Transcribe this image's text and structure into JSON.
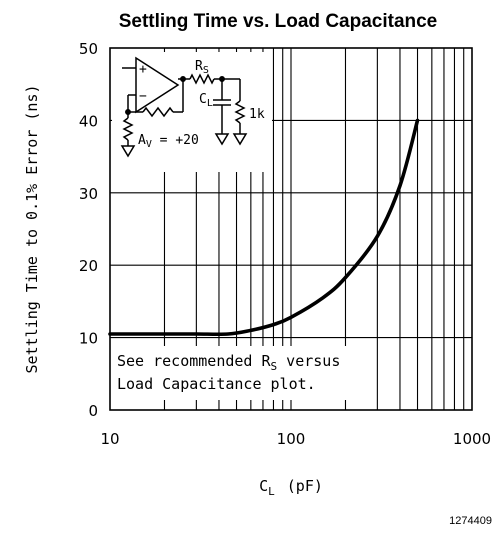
{
  "chart_data": {
    "type": "line",
    "title": "Settling Time vs. Load Capacitance",
    "xlabel": "C",
    "xlabel_sub": "L",
    "xlabel_unit": "(pF)",
    "ylabel": "Settling Time to 0.1% Error (ns)",
    "xscale": "log",
    "xlim": [
      10,
      1000
    ],
    "ylim": [
      0,
      50
    ],
    "xticks": [
      {
        "value": 10,
        "label": "10"
      },
      {
        "value": 100,
        "label": "100"
      },
      {
        "value": 1000,
        "label": "1000"
      }
    ],
    "yticks": [
      {
        "value": 0,
        "label": "0"
      },
      {
        "value": 10,
        "label": "10"
      },
      {
        "value": 20,
        "label": "20"
      },
      {
        "value": 30,
        "label": "30"
      },
      {
        "value": 40,
        "label": "40"
      },
      {
        "value": 50,
        "label": "50"
      }
    ],
    "grid": true,
    "series": [
      {
        "x": [
          10,
          20,
          30,
          45,
          60,
          80,
          100,
          150,
          200,
          300,
          400,
          500
        ],
        "y": [
          10.5,
          10.5,
          10.5,
          10.5,
          11.0,
          11.8,
          12.8,
          15.5,
          18.3,
          24.0,
          31.0,
          40.0
        ]
      }
    ],
    "annotation": {
      "line1_before": "See recommended R",
      "line1_sub": "S",
      "line1_after": " versus",
      "line2": "Load Capacitance plot."
    },
    "inset_schematic": {
      "plus": "+",
      "minus": "−",
      "rs_label": "R",
      "rs_sub": "S",
      "cl_label": "C",
      "cl_sub": "L",
      "resistor_label": "1k",
      "gain_label": "A",
      "gain_sub": "V",
      "gain_value": " = +20"
    }
  },
  "figure_id": "1274409"
}
